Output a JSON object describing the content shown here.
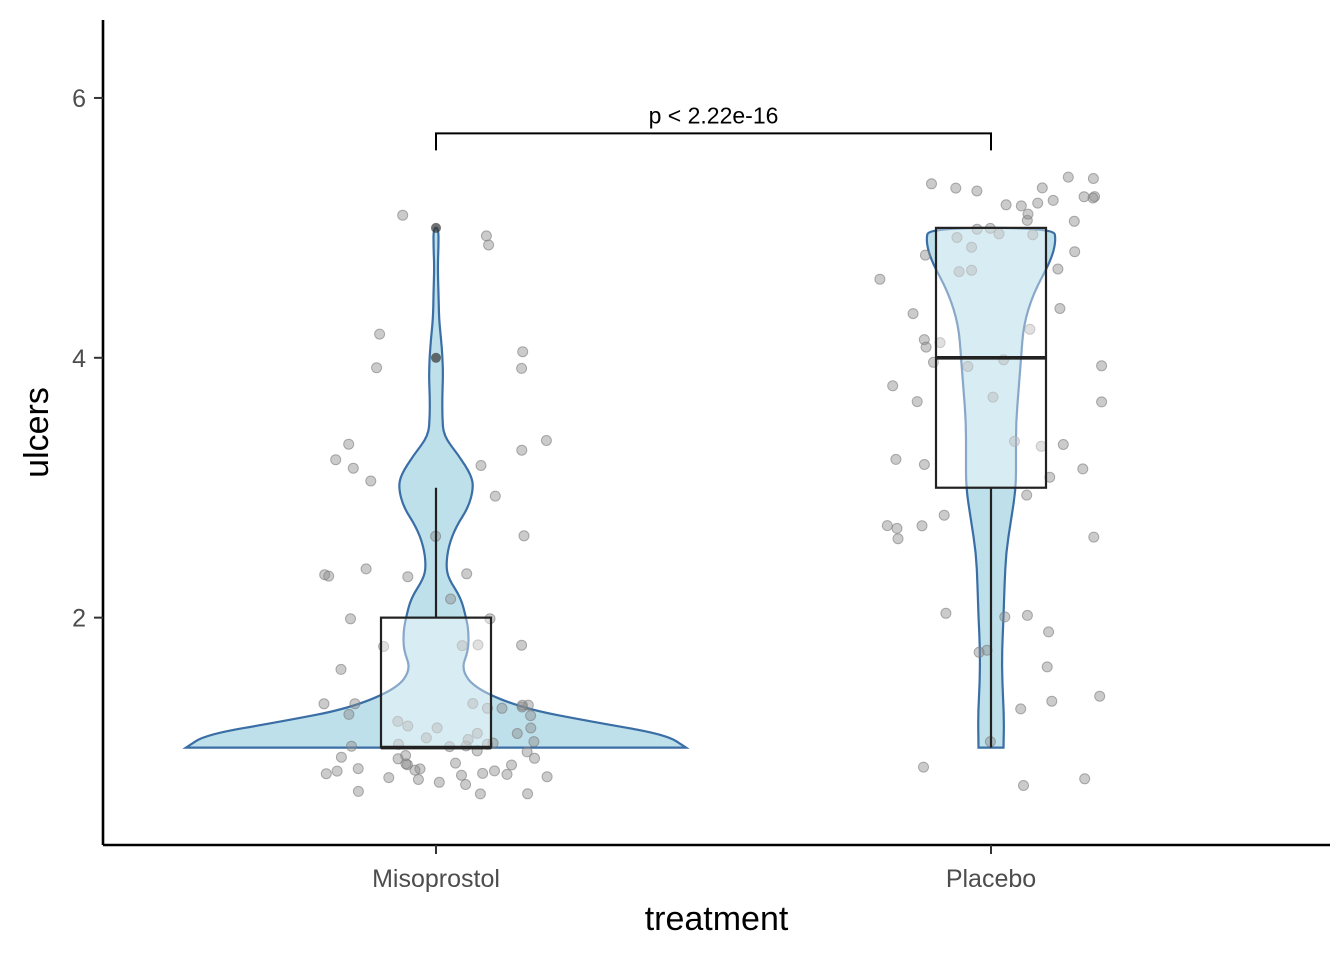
{
  "chart_data": {
    "type": "violin",
    "overlays": [
      "boxplot",
      "jitter"
    ],
    "xlabel": "treatment",
    "ylabel": "ulcers",
    "categories": [
      "Misoprostol",
      "Placebo"
    ],
    "y_ticks": [
      "2",
      "4",
      "6"
    ],
    "ylim": [
      0.25,
      6.6
    ],
    "grid": false,
    "colors": {
      "violin_fill": "#add8e6",
      "violin_stroke": "#3a6ea5",
      "points": "#8c8c8c",
      "box": "#222222"
    },
    "groups": [
      {
        "name": "Misoprostol",
        "boxplot": {
          "min": 1,
          "q1": 1,
          "median": 1,
          "q3": 2,
          "max": 3,
          "outliers": [
            4,
            5
          ]
        },
        "density": [
          [
            1,
            1.0
          ],
          [
            1.1,
            0.92
          ],
          [
            1.2,
            0.62
          ],
          [
            1.3,
            0.35
          ],
          [
            1.45,
            0.16
          ],
          [
            1.6,
            0.1
          ],
          [
            1.75,
            0.13
          ],
          [
            1.9,
            0.13
          ],
          [
            2.0,
            0.12
          ],
          [
            2.15,
            0.1
          ],
          [
            2.3,
            0.05
          ],
          [
            2.4,
            0.04
          ],
          [
            2.55,
            0.05
          ],
          [
            2.7,
            0.08
          ],
          [
            2.85,
            0.13
          ],
          [
            3.0,
            0.15
          ],
          [
            3.1,
            0.14
          ],
          [
            3.25,
            0.09
          ],
          [
            3.4,
            0.03
          ],
          [
            3.55,
            0.025
          ],
          [
            3.7,
            0.025
          ],
          [
            3.85,
            0.028
          ],
          [
            4.0,
            0.026
          ],
          [
            4.15,
            0.02
          ],
          [
            4.3,
            0.012
          ],
          [
            4.5,
            0.01
          ],
          [
            4.7,
            0.007
          ],
          [
            4.85,
            0.01
          ],
          [
            5.0,
            0.01
          ]
        ],
        "values": [
          1,
          1,
          1,
          1,
          1,
          1,
          1,
          1,
          1,
          1,
          1,
          1,
          1,
          1,
          1,
          1,
          1,
          1,
          1,
          1,
          1,
          1,
          1,
          1,
          1,
          1,
          1,
          1,
          1,
          1,
          1,
          1,
          1,
          1,
          1,
          1,
          1,
          1,
          1,
          1,
          1,
          1,
          1,
          1,
          1,
          1,
          1,
          1,
          1,
          1,
          1,
          1,
          2,
          2,
          2,
          2,
          2,
          2,
          2,
          2,
          2,
          2,
          2,
          2,
          2,
          3,
          3,
          3,
          3,
          3,
          3,
          3,
          3,
          3,
          3,
          4,
          4,
          4,
          4,
          5,
          5,
          5
        ]
      },
      {
        "name": "Placebo",
        "boxplot": {
          "min": 1,
          "q1": 3,
          "median": 4,
          "q3": 5,
          "max": 5,
          "outliers": []
        },
        "density": [
          [
            1,
            0.05
          ],
          [
            1.25,
            0.052
          ],
          [
            1.5,
            0.045
          ],
          [
            1.75,
            0.044
          ],
          [
            2.0,
            0.05
          ],
          [
            2.25,
            0.054
          ],
          [
            2.5,
            0.06
          ],
          [
            2.75,
            0.08
          ],
          [
            3.0,
            0.1
          ],
          [
            3.25,
            0.1
          ],
          [
            3.5,
            0.1
          ],
          [
            3.75,
            0.11
          ],
          [
            4.0,
            0.12
          ],
          [
            4.25,
            0.13
          ],
          [
            4.5,
            0.17
          ],
          [
            4.75,
            0.24
          ],
          [
            4.9,
            0.26
          ],
          [
            5.0,
            0.25
          ]
        ],
        "values": [
          1,
          1,
          1,
          1,
          1,
          1,
          1,
          2,
          2,
          2,
          2,
          2,
          2,
          2,
          3,
          3,
          3,
          3,
          3,
          3,
          3,
          3,
          3,
          3,
          3,
          3,
          3,
          3,
          4,
          4,
          4,
          4,
          4,
          4,
          4,
          4,
          4,
          4,
          4,
          4,
          4,
          4,
          5,
          5,
          5,
          5,
          5,
          5,
          5,
          5,
          5,
          5,
          5,
          5,
          5,
          5,
          5,
          5,
          5,
          5,
          5,
          5,
          5,
          5,
          5,
          5,
          5,
          5,
          5,
          5
        ]
      }
    ],
    "annotations": [
      {
        "type": "significance-bracket",
        "from": "Misoprostol",
        "to": "Placebo",
        "label": "p < 2.22e-16"
      }
    ]
  }
}
